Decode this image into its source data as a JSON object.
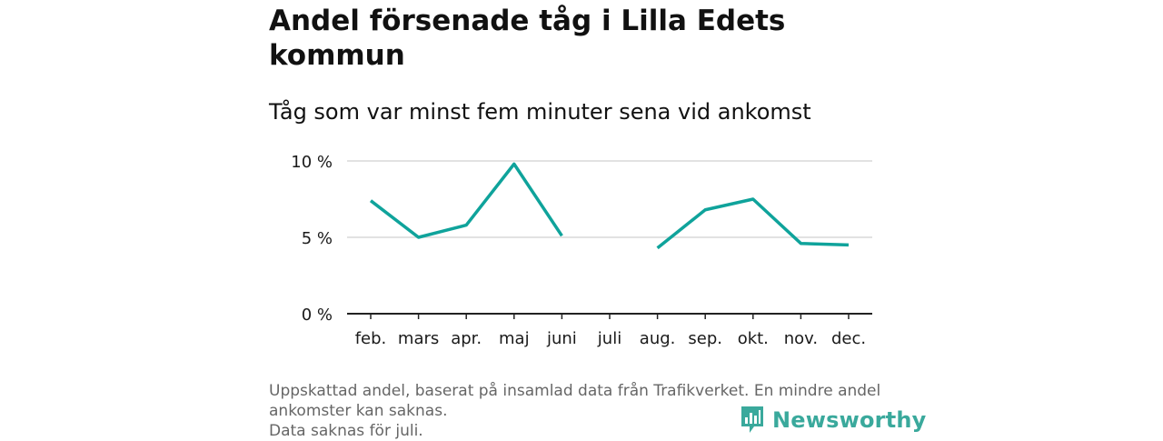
{
  "title": "Andel försenade tåg i Lilla Edets kommun",
  "subtitle": "Tåg som var minst fem minuter sena vid ankomst",
  "chart_data": {
    "type": "line",
    "categories": [
      "feb.",
      "mars",
      "apr.",
      "maj",
      "juni",
      "juli",
      "aug.",
      "sep.",
      "okt.",
      "nov.",
      "dec."
    ],
    "series": [
      {
        "values": [
          7.4,
          5.0,
          5.8,
          9.8,
          5.1,
          null,
          4.3,
          6.8,
          7.5,
          4.6,
          4.5
        ]
      }
    ],
    "ylim": [
      0,
      10
    ],
    "yticks": [
      0,
      5,
      10
    ],
    "ytick_labels": [
      "0 %",
      "5 %",
      "10 %"
    ],
    "xlabel": "",
    "ylabel": "",
    "grid": true,
    "line_color": "#0fa39b"
  },
  "footnote": {
    "line1": "Uppskattad andel, baserat på insamlad data från Trafikverket. En mindre andel\nankomster kan saknas.",
    "line2": "Data saknas för juli."
  },
  "brand": {
    "name": "Newsworthy",
    "icon": "newsworthy-logo-icon",
    "color": "#3aa99c"
  }
}
